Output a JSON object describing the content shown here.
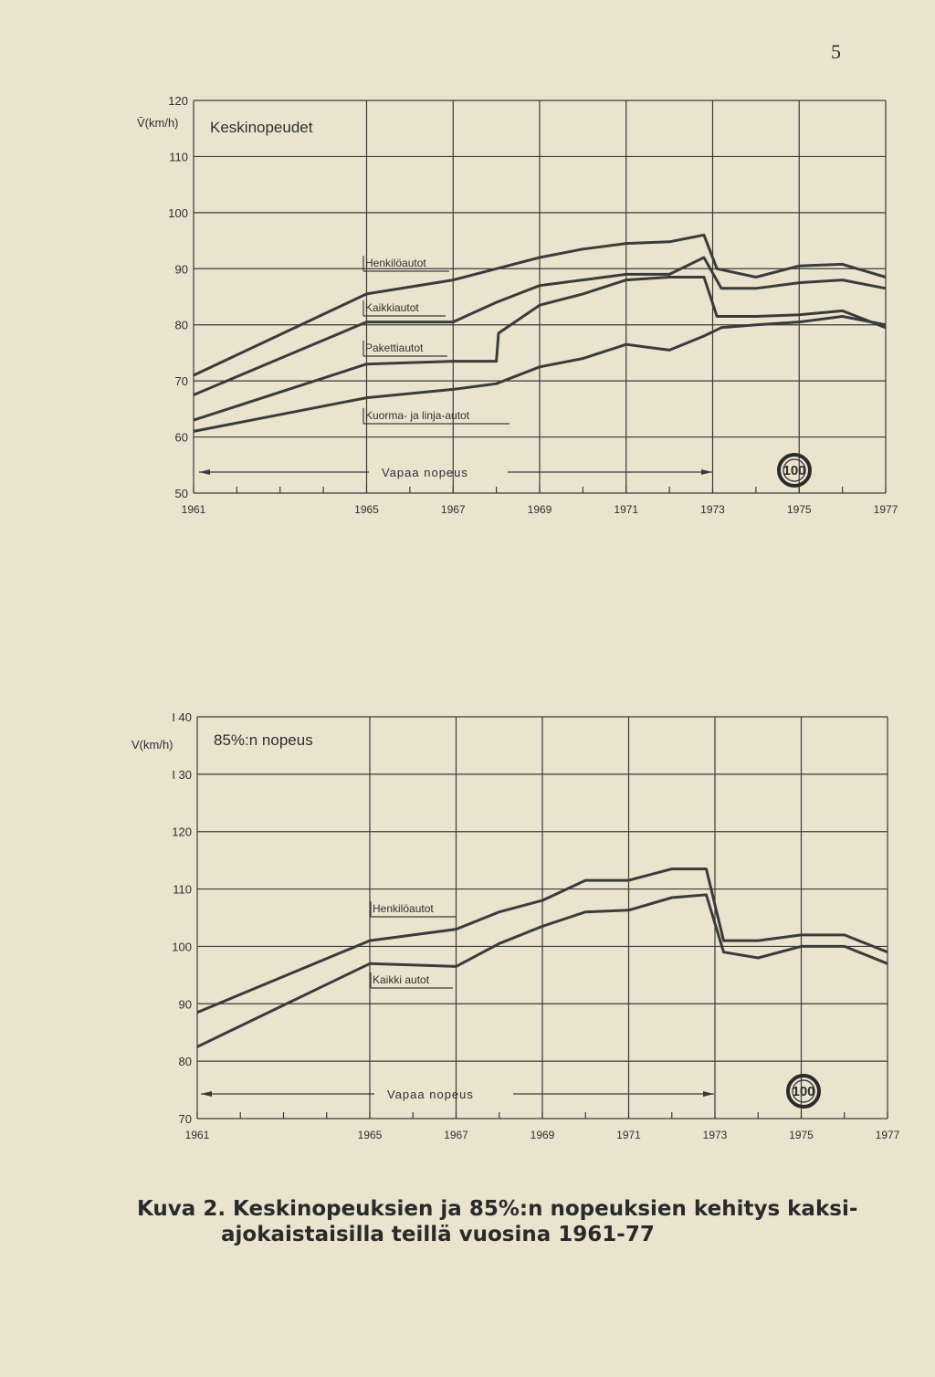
{
  "page_number": "5",
  "caption": {
    "line1": "Kuva 2. Keskinopeuksien ja 85%:n nopeuksien kehitys kaksi-",
    "line2": "ajokaistaisilla teillä vuosina 1961-77"
  },
  "chart_data": [
    {
      "type": "line",
      "title": "Keskinopeudet",
      "ylabel": "V̄(km/h)",
      "xlim": [
        1961,
        1977
      ],
      "ylim": [
        50,
        120
      ],
      "yticks": [
        50,
        60,
        70,
        80,
        90,
        100,
        110,
        120
      ],
      "ytick_labels": [
        "50",
        "60",
        "70",
        "80",
        "90",
        "100",
        "110",
        "120"
      ],
      "xtick_labels": [
        "1961",
        "1965",
        "1967",
        "1969",
        "1971",
        "1973",
        "1975",
        "1977"
      ],
      "xtick_values": [
        1961,
        1965,
        1967,
        1969,
        1971,
        1973,
        1975,
        1977
      ],
      "grid": true,
      "annotation": "Vapaa nopeus",
      "annotation_range": [
        1961,
        1973
      ],
      "speed_sign": "100",
      "series": [
        {
          "name": "Henkilöautot",
          "x": [
            1961,
            1965,
            1967,
            1968,
            1969,
            1970,
            1971,
            1972,
            1972.8,
            1973.1,
            1974,
            1975,
            1976,
            1977
          ],
          "y": [
            71,
            85.5,
            88,
            90,
            92,
            93.5,
            94.5,
            94.8,
            96,
            90,
            88.5,
            90.5,
            90.8,
            88.5
          ]
        },
        {
          "name": "Kaikkiautot",
          "x": [
            1961,
            1965,
            1967,
            1968,
            1969,
            1970,
            1971,
            1972,
            1972.8,
            1973.2,
            1974,
            1975,
            1976,
            1977
          ],
          "y": [
            67.5,
            80.5,
            80.5,
            84,
            87,
            88,
            89,
            89,
            92,
            86.5,
            86.5,
            87.5,
            88,
            86.5
          ]
        },
        {
          "name": "Pakettiautot",
          "x": [
            1961,
            1965,
            1967,
            1968,
            1968.05,
            1969,
            1970,
            1971,
            1972,
            1972.8,
            1973.1,
            1974,
            1975,
            1976,
            1977
          ],
          "y": [
            63,
            73,
            73.5,
            73.5,
            78.5,
            83.5,
            85.5,
            88,
            88.5,
            88.5,
            81.5,
            81.5,
            81.8,
            82.5,
            79.5
          ]
        },
        {
          "name": "Kuorma- ja linja-autot",
          "x": [
            1961,
            1965,
            1967,
            1968,
            1969,
            1970,
            1971,
            1972,
            1972.8,
            1973.2,
            1974,
            1975,
            1976,
            1977
          ],
          "y": [
            61,
            67,
            68.5,
            69.5,
            72.5,
            74,
            76.5,
            75.5,
            78,
            79.5,
            80,
            80.5,
            81.5,
            80
          ]
        }
      ]
    },
    {
      "type": "line",
      "title": "85%:n nopeus",
      "ylabel": "V(km/h)",
      "xlim": [
        1961,
        1977
      ],
      "ylim": [
        70,
        140
      ],
      "yticks": [
        70,
        80,
        90,
        100,
        110,
        120,
        130,
        140
      ],
      "ytick_labels": [
        "70",
        "80",
        "90",
        "100",
        "110",
        "120",
        "I 30",
        "I 40"
      ],
      "xtick_labels": [
        "1961",
        "1965",
        "1967",
        "1969",
        "1971",
        "1973",
        "1975",
        "1977"
      ],
      "xtick_values": [
        1961,
        1965,
        1967,
        1969,
        1971,
        1973,
        1975,
        1977
      ],
      "grid": true,
      "annotation": "Vapaa nopeus",
      "annotation_range": [
        1961,
        1973
      ],
      "speed_sign": "100",
      "series": [
        {
          "name": "Henkilöautot",
          "x": [
            1961,
            1965,
            1967,
            1968,
            1969,
            1970,
            1971,
            1972,
            1972.8,
            1973.2,
            1974,
            1975,
            1976,
            1977
          ],
          "y": [
            88.5,
            101,
            103,
            106,
            108,
            111.5,
            111.5,
            113.5,
            113.5,
            101,
            101,
            102,
            102,
            99
          ]
        },
        {
          "name": "Kaikki autot",
          "x": [
            1961,
            1965,
            1967,
            1968,
            1969,
            1970,
            1971,
            1972,
            1972.8,
            1973.2,
            1974,
            1975,
            1976,
            1977
          ],
          "y": [
            82.5,
            97,
            96.5,
            100.5,
            103.5,
            106,
            106.3,
            108.5,
            109,
            99,
            98,
            100,
            100,
            97
          ]
        }
      ]
    }
  ]
}
